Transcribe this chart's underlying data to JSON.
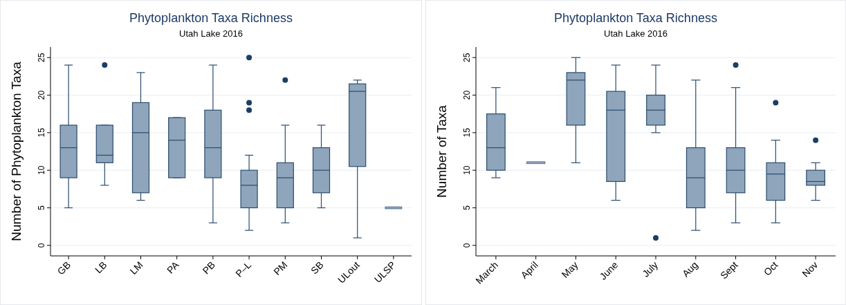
{
  "chart_data": [
    {
      "type": "box",
      "title": "Phytoplankton Taxa Richness",
      "subtitle": "Utah Lake 2016",
      "ylabel": "Number of Phytoplankton Taxa",
      "categories": [
        "GB",
        "LB",
        "LM",
        "PA",
        "PB",
        "P–L",
        "PM",
        "SB",
        "ULout",
        "ULSP"
      ],
      "color": "#8ea5bb",
      "boxes": [
        {
          "low": 5,
          "q1": 9,
          "median": 13,
          "q3": 16,
          "high": 24
        },
        {
          "low": 8,
          "q1": 11,
          "median": 12,
          "q3": 16,
          "high": 16,
          "outliers": [
            24
          ]
        },
        {
          "low": 6,
          "q1": 7,
          "median": 15,
          "q3": 19,
          "high": 23
        },
        {
          "low": 9,
          "q1": 9,
          "median": 14,
          "q3": 17,
          "high": 17
        },
        {
          "low": 3,
          "q1": 9,
          "median": 13,
          "q3": 18,
          "high": 24
        },
        {
          "low": 2,
          "q1": 5,
          "median": 8,
          "q3": 10,
          "high": 12,
          "outliers": [
            18,
            19,
            25
          ]
        },
        {
          "low": 3,
          "q1": 5,
          "median": 9,
          "q3": 11,
          "high": 16,
          "outliers": [
            22
          ]
        },
        {
          "low": 5,
          "q1": 7,
          "median": 10,
          "q3": 13,
          "high": 16
        },
        {
          "low": 1,
          "q1": 10.5,
          "median": 20.5,
          "q3": 21.5,
          "high": 22
        },
        {
          "low": 5,
          "q1": 5,
          "median": 5,
          "q3": 5,
          "high": 5
        }
      ],
      "ylim": [
        -1.4,
        26.4
      ],
      "yticks": [
        0,
        5,
        10,
        15,
        20,
        25
      ],
      "grid": "y"
    },
    {
      "type": "box",
      "title": "Phytoplankton Taxa Richness",
      "subtitle": "Utah Lake 2016",
      "ylabel": "Number of Taxa",
      "categories": [
        "March",
        "April",
        "May",
        "June",
        "July",
        "Aug",
        "Sept",
        "Oct",
        "Nov"
      ],
      "color": "#8ea5bb",
      "boxes": [
        {
          "low": 9,
          "q1": 10,
          "median": 13,
          "q3": 17.5,
          "high": 21
        },
        {
          "low": 11,
          "q1": 11,
          "median": 11,
          "q3": 11,
          "high": 11
        },
        {
          "low": 11,
          "q1": 16,
          "median": 22,
          "q3": 23,
          "high": 25
        },
        {
          "low": 6,
          "q1": 8.5,
          "median": 18,
          "q3": 20.5,
          "high": 24
        },
        {
          "low": 15,
          "q1": 16,
          "median": 18,
          "q3": 20,
          "high": 24,
          "outliers": [
            1
          ]
        },
        {
          "low": 2,
          "q1": 5,
          "median": 9,
          "q3": 13,
          "high": 22
        },
        {
          "low": 3,
          "q1": 7,
          "median": 10,
          "q3": 13,
          "high": 21,
          "outliers": [
            24
          ]
        },
        {
          "low": 3,
          "q1": 6,
          "median": 9.5,
          "q3": 11,
          "high": 14,
          "outliers": [
            19
          ]
        },
        {
          "low": 6,
          "q1": 8,
          "median": 8.5,
          "q3": 10,
          "high": 11,
          "outliers": [
            14
          ]
        }
      ],
      "ylim": [
        -1.4,
        26.4
      ],
      "yticks": [
        0,
        5,
        10,
        15,
        20,
        25
      ],
      "grid": "y"
    }
  ]
}
